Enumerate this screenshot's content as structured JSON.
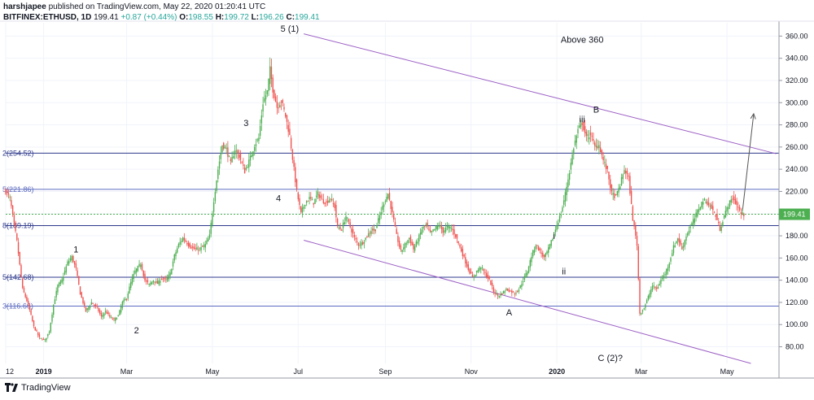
{
  "header": {
    "line1_user": "harshjapee",
    "line1_rest": " published on TradingView.com, May 22, 2020 01:20:41 UTC",
    "symbol": "BITFINEX:ETHUSD, 1D",
    "last": "199.41",
    "change": "+0.87 (+0.44%)",
    "o_label": "O:",
    "o_val": "198.55",
    "h_label": "H:",
    "h_val": "199.72",
    "l_label": "L:",
    "l_val": "196.26",
    "c_label": "C:",
    "c_val": "199.41"
  },
  "footer": {
    "brand": "TradingView"
  },
  "colors": {
    "up": "#4caf50",
    "down": "#ef5350",
    "channel": "#9c5fc5",
    "fib_dark": "#2e3a8c",
    "fib_light": "#5c6bc0",
    "price_line": "#4caf50"
  },
  "chart_data": {
    "type": "candlestick",
    "title": "",
    "y_range": [
      65,
      372
    ],
    "y_ticks": [
      80,
      100,
      120,
      140,
      160,
      180,
      200,
      220,
      240,
      260,
      280,
      300,
      320,
      340,
      360
    ],
    "y_tick_labels": [
      "80.00",
      "100.00",
      "120.00",
      "140.00",
      "160.00",
      "180.00",
      "200.00",
      "220.00",
      "240.00",
      "260.00",
      "280.00",
      "300.00",
      "320.00",
      "340.00",
      "360.00"
    ],
    "x_range_days": [
      0,
      550
    ],
    "x_tick_days": [
      0,
      27,
      86,
      147,
      208,
      270,
      331,
      392,
      452,
      513
    ],
    "x_tick_labels": [
      "12",
      "2019",
      "Mar",
      "May",
      "Jul",
      "Sep",
      "Nov",
      "2020",
      "Mar",
      "May"
    ],
    "price_close": [
      [
        0,
        220
      ],
      [
        3,
        214
      ],
      [
        5,
        198
      ],
      [
        8,
        175
      ],
      [
        12,
        132
      ],
      [
        16,
        118
      ],
      [
        20,
        98
      ],
      [
        24,
        88
      ],
      [
        28,
        86
      ],
      [
        31,
        94
      ],
      [
        34,
        118
      ],
      [
        37,
        135
      ],
      [
        40,
        140
      ],
      [
        44,
        156
      ],
      [
        47,
        161
      ],
      [
        50,
        150
      ],
      [
        53,
        128
      ],
      [
        57,
        112
      ],
      [
        61,
        120
      ],
      [
        65,
        115
      ],
      [
        68,
        107
      ],
      [
        71,
        112
      ],
      [
        74,
        107
      ],
      [
        77,
        104
      ],
      [
        80,
        108
      ],
      [
        83,
        120
      ],
      [
        86,
        124
      ],
      [
        89,
        138
      ],
      [
        92,
        148
      ],
      [
        96,
        155
      ],
      [
        99,
        140
      ],
      [
        102,
        136
      ],
      [
        105,
        140
      ],
      [
        108,
        137
      ],
      [
        111,
        142
      ],
      [
        114,
        140
      ],
      [
        117,
        146
      ],
      [
        120,
        162
      ],
      [
        123,
        172
      ],
      [
        126,
        178
      ],
      [
        130,
        172
      ],
      [
        134,
        168
      ],
      [
        138,
        168
      ],
      [
        142,
        172
      ],
      [
        145,
        180
      ],
      [
        148,
        212
      ],
      [
        151,
        240
      ],
      [
        154,
        262
      ],
      [
        157,
        258
      ],
      [
        160,
        245
      ],
      [
        163,
        258
      ],
      [
        166,
        252
      ],
      [
        170,
        238
      ],
      [
        174,
        250
      ],
      [
        177,
        262
      ],
      [
        180,
        268
      ],
      [
        183,
        300
      ],
      [
        186,
        310
      ],
      [
        188,
        330
      ],
      [
        190,
        312
      ],
      [
        193,
        296
      ],
      [
        196,
        302
      ],
      [
        199,
        288
      ],
      [
        202,
        270
      ],
      [
        205,
        240
      ],
      [
        207,
        220
      ],
      [
        210,
        200
      ],
      [
        213,
        210
      ],
      [
        216,
        214
      ],
      [
        219,
        210
      ],
      [
        222,
        218
      ],
      [
        225,
        212
      ],
      [
        228,
        210
      ],
      [
        231,
        214
      ],
      [
        234,
        206
      ],
      [
        236,
        188
      ],
      [
        239,
        186
      ],
      [
        242,
        198
      ],
      [
        245,
        188
      ],
      [
        248,
        178
      ],
      [
        251,
        172
      ],
      [
        254,
        174
      ],
      [
        257,
        180
      ],
      [
        260,
        185
      ],
      [
        263,
        186
      ],
      [
        266,
        198
      ],
      [
        269,
        210
      ],
      [
        272,
        218
      ],
      [
        275,
        200
      ],
      [
        278,
        180
      ],
      [
        281,
        166
      ],
      [
        284,
        172
      ],
      [
        287,
        178
      ],
      [
        290,
        168
      ],
      [
        293,
        176
      ],
      [
        296,
        186
      ],
      [
        299,
        190
      ],
      [
        302,
        182
      ],
      [
        305,
        186
      ],
      [
        308,
        190
      ],
      [
        311,
        184
      ],
      [
        314,
        188
      ],
      [
        317,
        187
      ],
      [
        320,
        180
      ],
      [
        323,
        170
      ],
      [
        326,
        160
      ],
      [
        329,
        150
      ],
      [
        332,
        142
      ],
      [
        335,
        148
      ],
      [
        338,
        152
      ],
      [
        341,
        146
      ],
      [
        344,
        140
      ],
      [
        347,
        130
      ],
      [
        350,
        126
      ],
      [
        353,
        128
      ],
      [
        356,
        132
      ],
      [
        359,
        130
      ],
      [
        362,
        128
      ],
      [
        365,
        132
      ],
      [
        368,
        140
      ],
      [
        371,
        148
      ],
      [
        374,
        162
      ],
      [
        377,
        172
      ],
      [
        380,
        166
      ],
      [
        383,
        160
      ],
      [
        386,
        168
      ],
      [
        389,
        178
      ],
      [
        392,
        190
      ],
      [
        395,
        200
      ],
      [
        398,
        218
      ],
      [
        401,
        238
      ],
      [
        404,
        260
      ],
      [
        407,
        275
      ],
      [
        410,
        282
      ],
      [
        413,
        268
      ],
      [
        416,
        272
      ],
      [
        419,
        260
      ],
      [
        422,
        262
      ],
      [
        425,
        248
      ],
      [
        428,
        238
      ],
      [
        431,
        218
      ],
      [
        434,
        215
      ],
      [
        437,
        226
      ],
      [
        440,
        240
      ],
      [
        443,
        232
      ],
      [
        446,
        195
      ],
      [
        449,
        172
      ],
      [
        451,
        110
      ],
      [
        454,
        115
      ],
      [
        457,
        125
      ],
      [
        460,
        135
      ],
      [
        463,
        132
      ],
      [
        466,
        140
      ],
      [
        469,
        146
      ],
      [
        472,
        156
      ],
      [
        475,
        170
      ],
      [
        478,
        178
      ],
      [
        481,
        168
      ],
      [
        484,
        180
      ],
      [
        487,
        188
      ],
      [
        490,
        196
      ],
      [
        493,
        205
      ],
      [
        496,
        212
      ],
      [
        499,
        210
      ],
      [
        502,
        205
      ],
      [
        505,
        198
      ],
      [
        508,
        186
      ],
      [
        511,
        198
      ],
      [
        514,
        208
      ],
      [
        517,
        214
      ],
      [
        520,
        208
      ],
      [
        523,
        200
      ],
      [
        525,
        199
      ]
    ],
    "fib_levels": [
      {
        "label": "2(254.52)",
        "value": 254.52,
        "style": "dark"
      },
      {
        "label": "5(221.86)",
        "value": 221.86,
        "style": "light"
      },
      {
        "label": "8(189.19)",
        "value": 189.19,
        "style": "dark"
      },
      {
        "label": "5(142.68)",
        "value": 142.68,
        "style": "dark"
      },
      {
        "label": "3(116.66)",
        "value": 116.66,
        "style": "light"
      }
    ],
    "current_price": {
      "value": 199.41,
      "label": "199.41"
    },
    "channel_lines": [
      {
        "from": [
          212,
          362
        ],
        "to": [
          548,
          254
        ]
      },
      {
        "from": [
          212,
          176
        ],
        "to": [
          530,
          65
        ]
      }
    ],
    "arrow": {
      "from": [
        524,
        202
      ],
      "to": [
        532,
        290
      ]
    },
    "annotations": [
      {
        "text": "1",
        "day": 50,
        "price": 168
      },
      {
        "text": "2",
        "day": 93,
        "price": 95
      },
      {
        "text": "3",
        "day": 171,
        "price": 282
      },
      {
        "text": "4",
        "day": 194,
        "price": 214
      },
      {
        "text": "5 (1)",
        "day": 202,
        "price": 367
      },
      {
        "text": "A",
        "day": 358,
        "price": 111
      },
      {
        "text": "i",
        "day": 390,
        "price": 180
      },
      {
        "text": "ii",
        "day": 397,
        "price": 148
      },
      {
        "text": "iii",
        "day": 410,
        "price": 285
      },
      {
        "text": "B",
        "day": 420,
        "price": 294
      },
      {
        "text": "C (2)?",
        "day": 430,
        "price": 70
      },
      {
        "text": "Above 360",
        "day": 410,
        "price": 357
      }
    ]
  }
}
